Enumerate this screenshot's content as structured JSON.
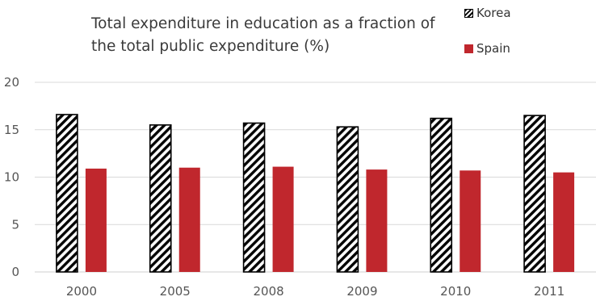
{
  "chart_data": {
    "type": "bar",
    "title_lines": [
      "Total expenditure in education as a fraction of",
      "the total public expenditure (%)"
    ],
    "xlabel": "",
    "ylabel": "",
    "categories": [
      "2000",
      "2005",
      "2008",
      "2009",
      "2010",
      "2011"
    ],
    "series": [
      {
        "name": "Korea",
        "values": [
          16.6,
          15.5,
          15.7,
          15.3,
          16.2,
          16.5
        ],
        "color": "#000000",
        "pattern": "diagonal-hatch"
      },
      {
        "name": "Spain",
        "values": [
          10.9,
          11.0,
          11.1,
          10.8,
          10.7,
          10.5
        ],
        "color": "#c0272d",
        "pattern": "solid"
      }
    ],
    "ylim": [
      0,
      20
    ],
    "yticks": [
      "0",
      "5",
      "10",
      "15",
      "20"
    ],
    "grid": true,
    "legend_position": "top-right"
  }
}
